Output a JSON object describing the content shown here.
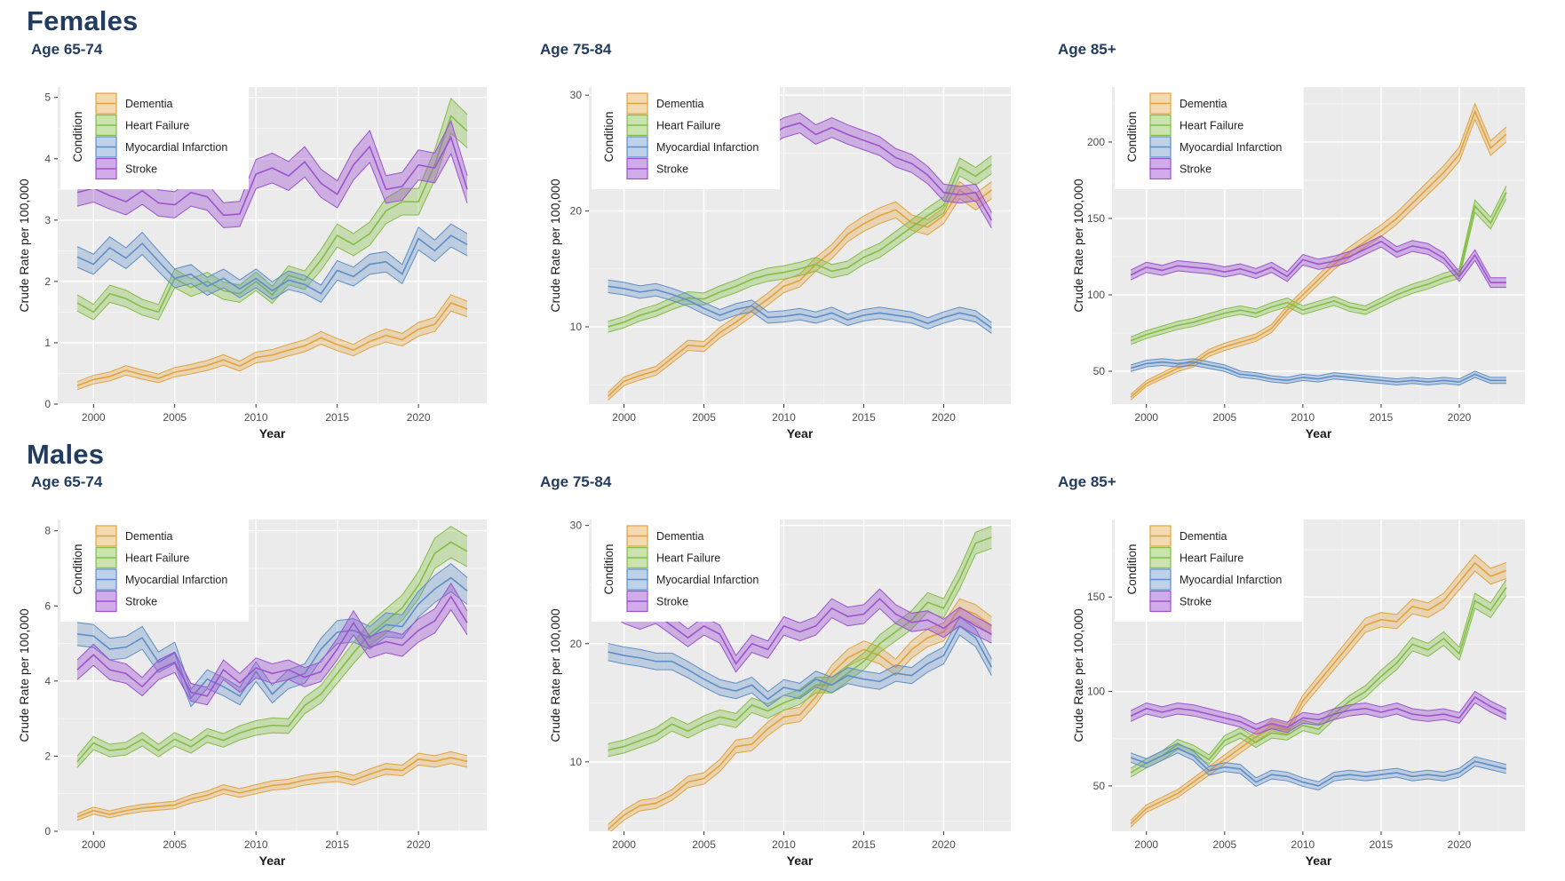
{
  "chart_meta": {
    "sections": [
      {
        "label": "Females"
      },
      {
        "label": "Males"
      }
    ],
    "xlabel": "Year",
    "ylabel": "Crude Rate per 100,000",
    "legend_title": "Condition",
    "years": [
      1999,
      2000,
      2001,
      2002,
      2003,
      2004,
      2005,
      2006,
      2007,
      2008,
      2009,
      2010,
      2011,
      2012,
      2013,
      2014,
      2015,
      2016,
      2017,
      2018,
      2019,
      2020,
      2021,
      2022,
      2023
    ],
    "xticks": [
      2000,
      2005,
      2010,
      2015,
      2020
    ],
    "xlim": [
      1997.8,
      2024.2
    ],
    "grid": true,
    "legend_position": "top-left-inside",
    "panel_bg": "#EBEBEB",
    "grid_color": "#FFFFFF",
    "title_color": "#223C5F",
    "conditions": [
      {
        "name": "Dementia",
        "color": "#E2A33D",
        "fill_opacity": 0.32
      },
      {
        "name": "Heart Failure",
        "color": "#83BE46",
        "fill_opacity": 0.35
      },
      {
        "name": "Myocardial Infarction",
        "color": "#5E8EC7",
        "fill_opacity": 0.32
      },
      {
        "name": "Stroke",
        "color": "#9D53D0",
        "fill_opacity": 0.4
      }
    ]
  },
  "chart_data": [
    {
      "type": "line",
      "section": "Females",
      "subtitle": "Age 65-74",
      "ylim": [
        0,
        5.17
      ],
      "yticks": [
        0,
        1,
        2,
        3,
        4,
        5
      ],
      "band": {
        "c": 0.05,
        "f": 0.05
      },
      "series": [
        {
          "name": "Dementia",
          "values": [
            0.3,
            0.4,
            0.45,
            0.55,
            0.48,
            0.42,
            0.52,
            0.57,
            0.63,
            0.72,
            0.62,
            0.76,
            0.8,
            0.88,
            0.95,
            1.08,
            0.97,
            0.88,
            1.02,
            1.12,
            1.05,
            1.22,
            1.3,
            1.65,
            1.55
          ]
        },
        {
          "name": "Heart Failure",
          "values": [
            1.65,
            1.5,
            1.8,
            1.72,
            1.58,
            1.5,
            2.05,
            1.9,
            2.0,
            1.85,
            1.8,
            2.0,
            1.78,
            2.1,
            2.02,
            2.35,
            2.75,
            2.6,
            2.78,
            3.15,
            3.3,
            3.3,
            3.9,
            4.7,
            4.45
          ]
        },
        {
          "name": "Myocardial Infarction",
          "values": [
            2.4,
            2.28,
            2.55,
            2.38,
            2.62,
            2.33,
            2.05,
            2.12,
            1.92,
            2.05,
            1.88,
            2.05,
            1.85,
            2.02,
            1.95,
            1.8,
            2.18,
            2.08,
            2.28,
            2.32,
            2.12,
            2.7,
            2.5,
            2.75,
            2.6
          ]
        },
        {
          "name": "Stroke",
          "values": [
            3.45,
            3.52,
            3.4,
            3.3,
            3.48,
            3.28,
            3.25,
            3.45,
            3.38,
            3.08,
            3.1,
            3.75,
            3.85,
            3.72,
            3.95,
            3.6,
            3.42,
            3.9,
            4.2,
            3.5,
            3.55,
            3.9,
            3.85,
            4.35,
            3.5
          ]
        }
      ]
    },
    {
      "type": "line",
      "section": "Females",
      "subtitle": "Age 75-84",
      "ylim": [
        3.33,
        30.7
      ],
      "yticks": [
        10,
        20,
        30
      ],
      "band": {
        "c": 0.25,
        "f": 0.022
      },
      "series": [
        {
          "name": "Dementia",
          "values": [
            4.0,
            5.3,
            5.8,
            6.2,
            7.3,
            8.4,
            8.3,
            9.5,
            10.4,
            11.4,
            12.4,
            13.5,
            14.0,
            15.4,
            16.5,
            18.0,
            18.9,
            19.6,
            20.1,
            19.0,
            18.6,
            19.6,
            21.8,
            20.8,
            21.8
          ]
        },
        {
          "name": "Heart Failure",
          "values": [
            10.0,
            10.4,
            11.0,
            11.4,
            12.0,
            12.5,
            12.4,
            13.0,
            13.5,
            14.1,
            14.5,
            14.7,
            15.0,
            15.4,
            14.8,
            15.1,
            16.0,
            16.6,
            17.6,
            18.6,
            19.6,
            20.5,
            23.8,
            23.0,
            24.0
          ]
        },
        {
          "name": "Myocardial Infarction",
          "values": [
            13.5,
            13.3,
            13.0,
            13.2,
            12.8,
            12.3,
            11.6,
            11.0,
            11.5,
            11.8,
            10.8,
            10.9,
            11.1,
            10.8,
            11.2,
            10.6,
            11.0,
            11.2,
            11.0,
            10.8,
            10.3,
            10.8,
            11.2,
            10.9,
            9.9
          ]
        },
        {
          "name": "Stroke",
          "values": [
            25.5,
            26.0,
            25.6,
            26.2,
            26.0,
            25.6,
            26.2,
            26.4,
            26.0,
            26.6,
            26.4,
            27.2,
            27.6,
            26.6,
            27.2,
            26.6,
            26.1,
            25.6,
            24.6,
            24.1,
            23.1,
            21.6,
            21.4,
            21.6,
            19.2
          ]
        }
      ]
    },
    {
      "type": "line",
      "section": "Females",
      "subtitle": "Age 85+",
      "ylim": [
        28.5,
        236
      ],
      "yticks": [
        50,
        100,
        150,
        200
      ],
      "band": {
        "c": 1.2,
        "f": 0.018
      },
      "series": [
        {
          "name": "Dementia",
          "values": [
            33,
            42,
            47,
            52,
            55,
            62,
            66,
            69,
            72,
            78,
            90,
            100,
            110,
            120,
            128,
            135,
            142,
            150,
            160,
            170,
            180,
            192,
            220,
            196,
            205
          ]
        },
        {
          "name": "Heart Failure",
          "values": [
            70,
            74,
            77,
            80,
            82,
            85,
            88,
            90,
            88,
            92,
            95,
            90,
            93,
            96,
            92,
            90,
            95,
            100,
            104,
            107,
            111,
            114,
            158,
            147,
            167
          ]
        },
        {
          "name": "Myocardial Infarction",
          "values": [
            52,
            55,
            56,
            55,
            56,
            54,
            52,
            48,
            47,
            45,
            44,
            46,
            45,
            47,
            46,
            45,
            44,
            43,
            44,
            43,
            44,
            43,
            48,
            44,
            44
          ]
        },
        {
          "name": "Stroke",
          "values": [
            113,
            118,
            116,
            119,
            118,
            117,
            115,
            117,
            114,
            118,
            112,
            123,
            120,
            122,
            125,
            130,
            135,
            128,
            132,
            130,
            124,
            112,
            126,
            108,
            108
          ]
        }
      ]
    },
    {
      "type": "line",
      "section": "Males",
      "subtitle": "Age 65-74",
      "ylim": [
        0,
        8.3
      ],
      "yticks": [
        0,
        2,
        4,
        6,
        8
      ],
      "band": {
        "c": 0.07,
        "f": 0.045
      },
      "series": [
        {
          "name": "Dementia",
          "values": [
            0.38,
            0.55,
            0.45,
            0.55,
            0.62,
            0.66,
            0.7,
            0.86,
            0.96,
            1.12,
            1.02,
            1.12,
            1.22,
            1.26,
            1.36,
            1.42,
            1.46,
            1.36,
            1.52,
            1.66,
            1.62,
            1.92,
            1.86,
            1.96,
            1.86
          ]
        },
        {
          "name": "Heart Failure",
          "values": [
            1.85,
            2.35,
            2.15,
            2.2,
            2.45,
            2.15,
            2.45,
            2.25,
            2.55,
            2.42,
            2.62,
            2.75,
            2.82,
            2.8,
            3.35,
            3.65,
            4.2,
            4.75,
            5.25,
            5.6,
            5.95,
            6.55,
            7.4,
            7.7,
            7.45
          ]
        },
        {
          "name": "Myocardial Infarction",
          "values": [
            5.25,
            5.2,
            4.85,
            4.9,
            5.15,
            4.5,
            4.75,
            3.55,
            4.05,
            3.85,
            3.6,
            4.25,
            3.65,
            4.05,
            4.2,
            4.85,
            5.3,
            5.35,
            5.15,
            5.5,
            5.45,
            6.05,
            6.45,
            6.75,
            6.4
          ]
        },
        {
          "name": "Stroke",
          "values": [
            4.3,
            4.7,
            4.3,
            4.2,
            3.85,
            4.3,
            4.5,
            3.7,
            3.6,
            4.3,
            3.95,
            4.35,
            4.2,
            4.3,
            4.1,
            4.25,
            4.85,
            5.55,
            4.9,
            5.05,
            4.95,
            5.35,
            5.6,
            6.25,
            5.55
          ]
        }
      ]
    },
    {
      "type": "line",
      "section": "Males",
      "subtitle": "Age 75-84",
      "ylim": [
        4.13,
        30.5
      ],
      "yticks": [
        10,
        20,
        30
      ],
      "band": {
        "c": 0.3,
        "f": 0.022
      },
      "series": [
        {
          "name": "Dementia",
          "values": [
            4.3,
            5.5,
            6.3,
            6.5,
            7.2,
            8.3,
            8.6,
            9.7,
            11.3,
            11.5,
            12.8,
            13.8,
            14.0,
            15.5,
            17.5,
            18.8,
            19.5,
            19.0,
            18.0,
            19.5,
            20.5,
            21.0,
            23.0,
            22.5,
            21.5
          ]
        },
        {
          "name": "Heart Failure",
          "values": [
            11.0,
            11.3,
            11.8,
            12.3,
            13.2,
            12.6,
            13.3,
            13.8,
            13.5,
            14.8,
            14.3,
            15.0,
            15.5,
            16.5,
            16.5,
            17.5,
            18.5,
            20.0,
            21.0,
            22.0,
            23.5,
            23.0,
            25.5,
            28.5,
            29.0
          ]
        },
        {
          "name": "Myocardial Infarction",
          "values": [
            19.3,
            19.0,
            18.8,
            18.5,
            18.5,
            17.8,
            17.0,
            16.3,
            16.0,
            16.5,
            15.3,
            16.3,
            16.0,
            17.0,
            16.5,
            17.3,
            17.0,
            16.8,
            17.5,
            17.3,
            18.3,
            19.0,
            21.5,
            20.5,
            18.0
          ]
        },
        {
          "name": "Stroke",
          "values": [
            23.5,
            22.5,
            22.0,
            22.5,
            21.5,
            20.5,
            21.5,
            20.8,
            18.3,
            20.0,
            19.5,
            21.5,
            21.0,
            21.5,
            23.0,
            22.3,
            22.5,
            23.8,
            22.5,
            21.8,
            22.0,
            21.3,
            22.3,
            21.5,
            20.8
          ]
        }
      ]
    },
    {
      "type": "line",
      "section": "Males",
      "subtitle": "Age 85+",
      "ylim": [
        26,
        191
      ],
      "yticks": [
        50,
        100,
        150
      ],
      "band": {
        "c": 1.3,
        "f": 0.018
      },
      "series": [
        {
          "name": "Dementia",
          "values": [
            30,
            38,
            42,
            46,
            52,
            58,
            64,
            70,
            76,
            82,
            80,
            95,
            105,
            115,
            125,
            135,
            138,
            137,
            145,
            143,
            148,
            158,
            168,
            161,
            164
          ]
        },
        {
          "name": "Heart Failure",
          "values": [
            57,
            62,
            66,
            72,
            69,
            64,
            74,
            78,
            73,
            78,
            77,
            82,
            80,
            88,
            95,
            100,
            108,
            115,
            125,
            122,
            128,
            120,
            148,
            143,
            155
          ]
        },
        {
          "name": "Myocardial Infarction",
          "values": [
            65,
            62,
            66,
            70,
            66,
            58,
            60,
            59,
            52,
            56,
            55,
            52,
            50,
            55,
            56,
            55,
            56,
            57,
            55,
            56,
            55,
            57,
            63,
            61,
            59
          ]
        },
        {
          "name": "Stroke",
          "values": [
            87,
            91,
            89,
            91,
            90,
            88,
            86,
            84,
            80,
            83,
            81,
            86,
            85,
            88,
            90,
            91,
            89,
            91,
            88,
            87,
            88,
            86,
            97,
            92,
            88
          ]
        }
      ]
    }
  ]
}
